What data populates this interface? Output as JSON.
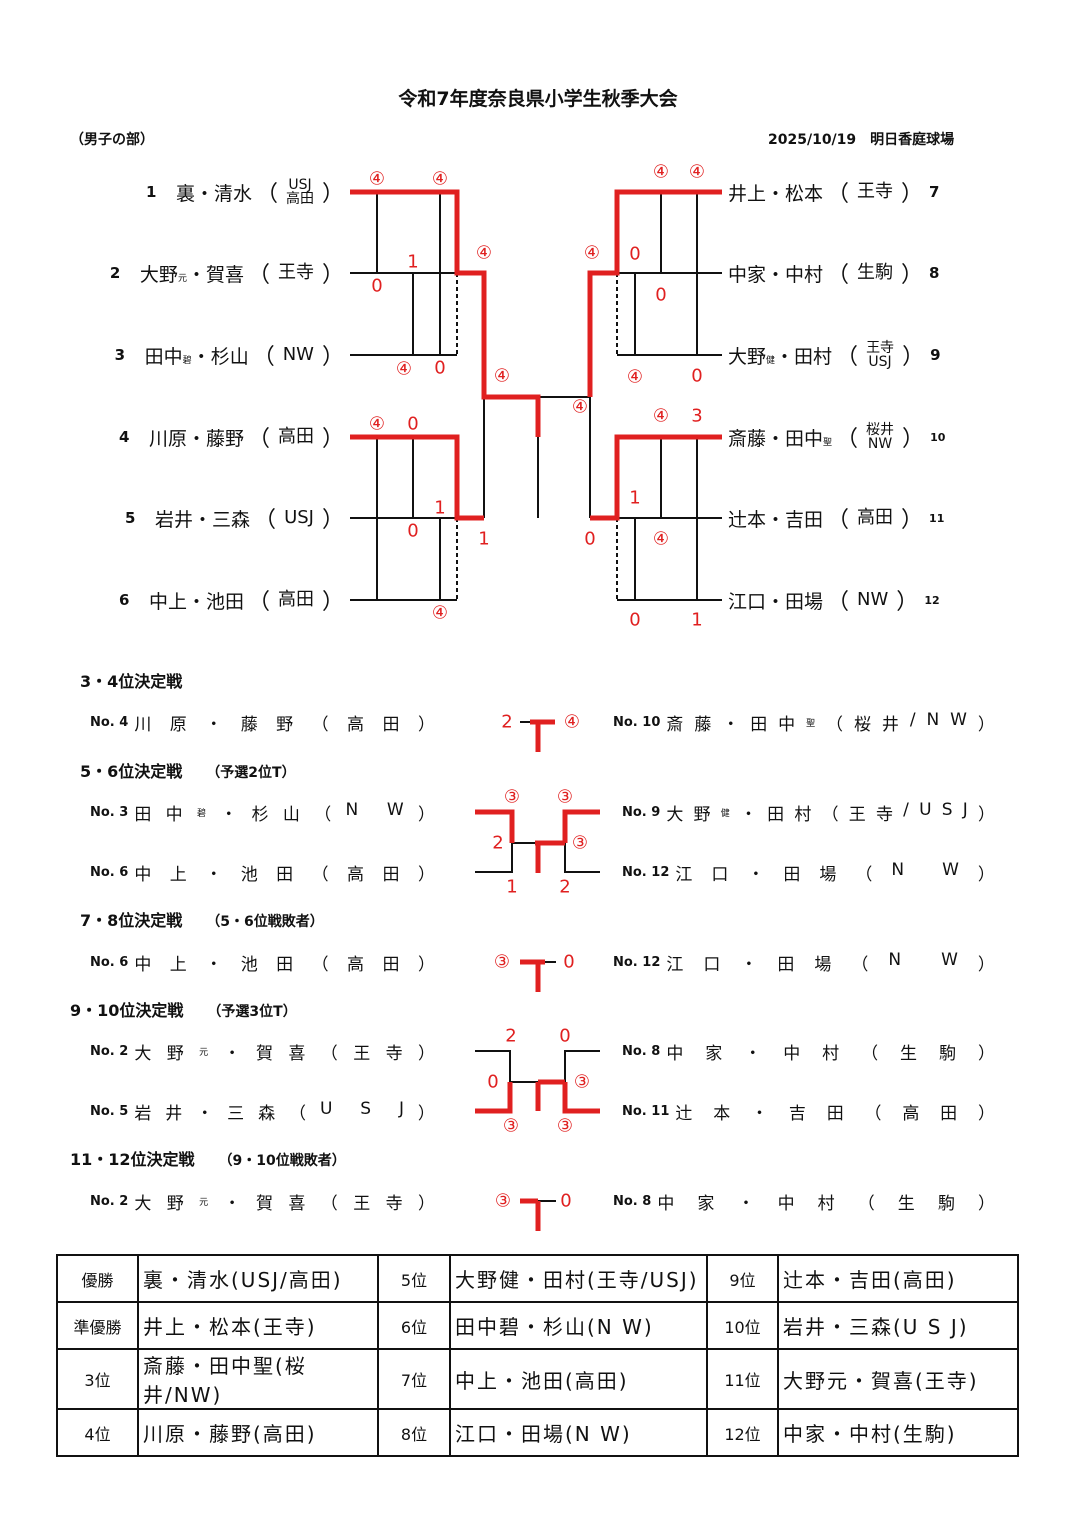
{
  "title": "令和7年度奈良県小学生秋季大会",
  "division": "（男子の部）",
  "date_venue": "2025/10/19　明日香庭球場",
  "colors": {
    "win_line": "#e02020",
    "line": "#111111",
    "score": "#e02020"
  },
  "bracket": {
    "left": [
      {
        "no": "1",
        "pre": "裏・清水",
        "sub": "",
        "post": "",
        "club": [
          "USJ",
          "高田"
        ]
      },
      {
        "no": "2",
        "pre": "大野",
        "sub": "元",
        "post": "・賀喜",
        "club": [
          "王寺"
        ]
      },
      {
        "no": "3",
        "pre": "田中",
        "sub": "碧",
        "post": "・杉山",
        "club": [
          "NW"
        ]
      },
      {
        "no": "4",
        "pre": "川原・藤野",
        "sub": "",
        "post": "",
        "club": [
          "高田"
        ]
      },
      {
        "no": "5",
        "pre": "岩井・三森",
        "sub": "",
        "post": "",
        "club": [
          "USJ"
        ]
      },
      {
        "no": "6",
        "pre": "中上・池田",
        "sub": "",
        "post": "",
        "club": [
          "高田"
        ]
      }
    ],
    "right": [
      {
        "no": "7",
        "pre": "井上・松本",
        "sub": "",
        "post": "",
        "club": [
          "王寺"
        ]
      },
      {
        "no": "8",
        "pre": "中家・中村",
        "sub": "",
        "post": "",
        "club": [
          "生駒"
        ]
      },
      {
        "no": "9",
        "pre": "大野",
        "sub": "健",
        "post": "・田村",
        "club": [
          "王寺",
          "USJ"
        ]
      },
      {
        "no": "10",
        "pre": "斎藤・田中",
        "sub": "聖",
        "post": "",
        "club": [
          "桜井",
          "NW"
        ]
      },
      {
        "no": "11",
        "pre": "辻本・吉田",
        "sub": "",
        "post": "",
        "club": [
          "高田"
        ]
      },
      {
        "no": "12",
        "pre": "江口・田場",
        "sub": "",
        "post": "",
        "club": [
          "NW"
        ]
      }
    ],
    "scores": [
      "④",
      "④",
      "0",
      "1",
      "④",
      "0",
      "④",
      "④",
      "④",
      "0",
      "0",
      "1",
      "④",
      "1",
      "④",
      "④",
      "0",
      "0",
      "④",
      "0",
      "④",
      "④",
      "④",
      "3",
      "1",
      "④",
      "0",
      "1",
      "0"
    ]
  },
  "placement": [
    {
      "title": "3・4位決定戦",
      "note": "",
      "left": [
        {
          "no": "No. 4",
          "pre": "川原・藤野（高田）",
          "sub": "",
          "post": ""
        }
      ],
      "right": [
        {
          "no": "No. 10",
          "pre": "斎藤・田中",
          "sub": "聖",
          "post": "（桜井/NW）"
        }
      ],
      "scores": [
        "2",
        "④"
      ]
    },
    {
      "title": "5・6位決定戦",
      "note": "（予選2位T）",
      "left": [
        {
          "no": "No. 3",
          "pre": "田中",
          "sub": "碧",
          "post": "・杉山（N W）"
        },
        {
          "no": "No. 6",
          "pre": "中上・池田（高田）",
          "sub": "",
          "post": ""
        }
      ],
      "right": [
        {
          "no": "No. 9",
          "pre": "大野",
          "sub": "健",
          "post": "・田村（王寺/USJ）"
        },
        {
          "no": "No. 12",
          "pre": "江口・田場（N W）",
          "sub": "",
          "post": ""
        }
      ],
      "scores": [
        "③",
        "③",
        "2",
        "③",
        "1",
        "2"
      ]
    },
    {
      "title": "7・8位決定戦",
      "note": "（5・6位戦敗者）",
      "left": [
        {
          "no": "No. 6",
          "pre": "中上・池田（高田）",
          "sub": "",
          "post": ""
        }
      ],
      "right": [
        {
          "no": "No. 12",
          "pre": "江口・田場（N W）",
          "sub": "",
          "post": ""
        }
      ],
      "scores": [
        "③",
        "0"
      ]
    },
    {
      "title": "9・10位決定戦",
      "note": "（予選3位T）",
      "left": [
        {
          "no": "No. 2",
          "pre": "大野",
          "sub": "元",
          "post": "・賀喜（王寺）"
        },
        {
          "no": "No. 5",
          "pre": "岩井・三森（U S J）",
          "sub": "",
          "post": ""
        }
      ],
      "right": [
        {
          "no": "No. 8",
          "pre": "中家・中村（生駒）",
          "sub": "",
          "post": ""
        },
        {
          "no": "No. 11",
          "pre": "辻本・吉田（高田）",
          "sub": "",
          "post": ""
        }
      ],
      "scores": [
        "2",
        "0",
        "0",
        "③",
        "③",
        "③"
      ]
    },
    {
      "title": "11・12位決定戦",
      "note": "（9・10位戦敗者）",
      "left": [
        {
          "no": "No. 2",
          "pre": "大野",
          "sub": "元",
          "post": "・賀喜（王寺）"
        }
      ],
      "right": [
        {
          "no": "No. 8",
          "pre": "中家・中村（生駒）",
          "sub": "",
          "post": ""
        }
      ],
      "scores": [
        "③",
        "0"
      ]
    }
  ],
  "results": [
    [
      {
        "rank": "優勝",
        "name": "裏・清水(USJ/高田)"
      },
      {
        "rank": "5位",
        "name": "大野健・田村(王寺/USJ)"
      },
      {
        "rank": "9位",
        "name": "辻本・吉田(高田)"
      }
    ],
    [
      {
        "rank": "準優勝",
        "name": "井上・松本(王寺)"
      },
      {
        "rank": "6位",
        "name": "田中碧・杉山(N W)"
      },
      {
        "rank": "10位",
        "name": "岩井・三森(U S J)"
      }
    ],
    [
      {
        "rank": "3位",
        "name": "斎藤・田中聖(桜井/NW)"
      },
      {
        "rank": "7位",
        "name": "中上・池田(高田)"
      },
      {
        "rank": "11位",
        "name": "大野元・賀喜(王寺)"
      }
    ],
    [
      {
        "rank": "4位",
        "name": "川原・藤野(高田)"
      },
      {
        "rank": "8位",
        "name": "江口・田場(N W)"
      },
      {
        "rank": "12位",
        "name": "中家・中村(生駒)"
      }
    ]
  ]
}
